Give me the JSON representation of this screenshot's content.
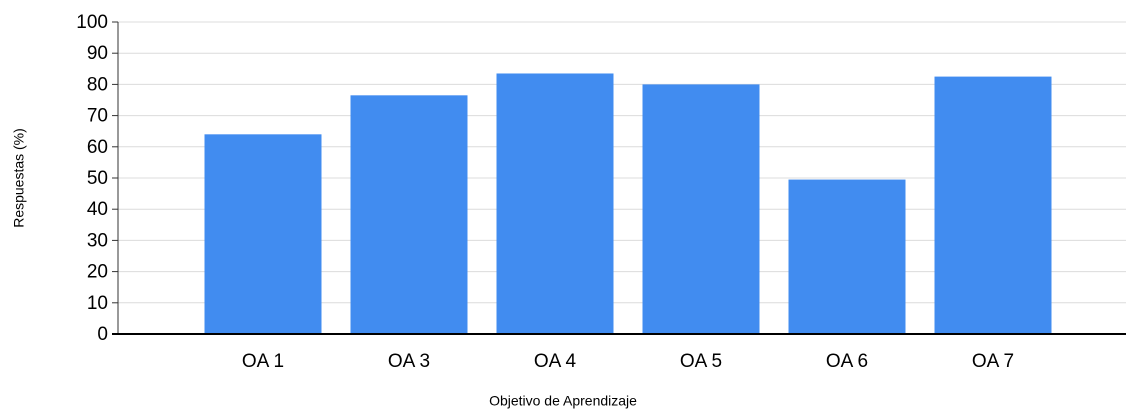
{
  "chart_data": {
    "type": "bar",
    "xlabel": "Objetivo de Aprendizaje",
    "ylabel": "Respuestas (%)",
    "categories": [
      "OA 1",
      "OA 3",
      "OA 4",
      "OA 5",
      "OA 6",
      "OA 7"
    ],
    "values": [
      64,
      76.5,
      83.5,
      80,
      49.5,
      82.5
    ],
    "color": "#418cf0",
    "ylim": [
      0,
      100
    ],
    "yticks": [
      0,
      10,
      20,
      30,
      40,
      50,
      60,
      70,
      80,
      90,
      100
    ],
    "grid": true
  }
}
